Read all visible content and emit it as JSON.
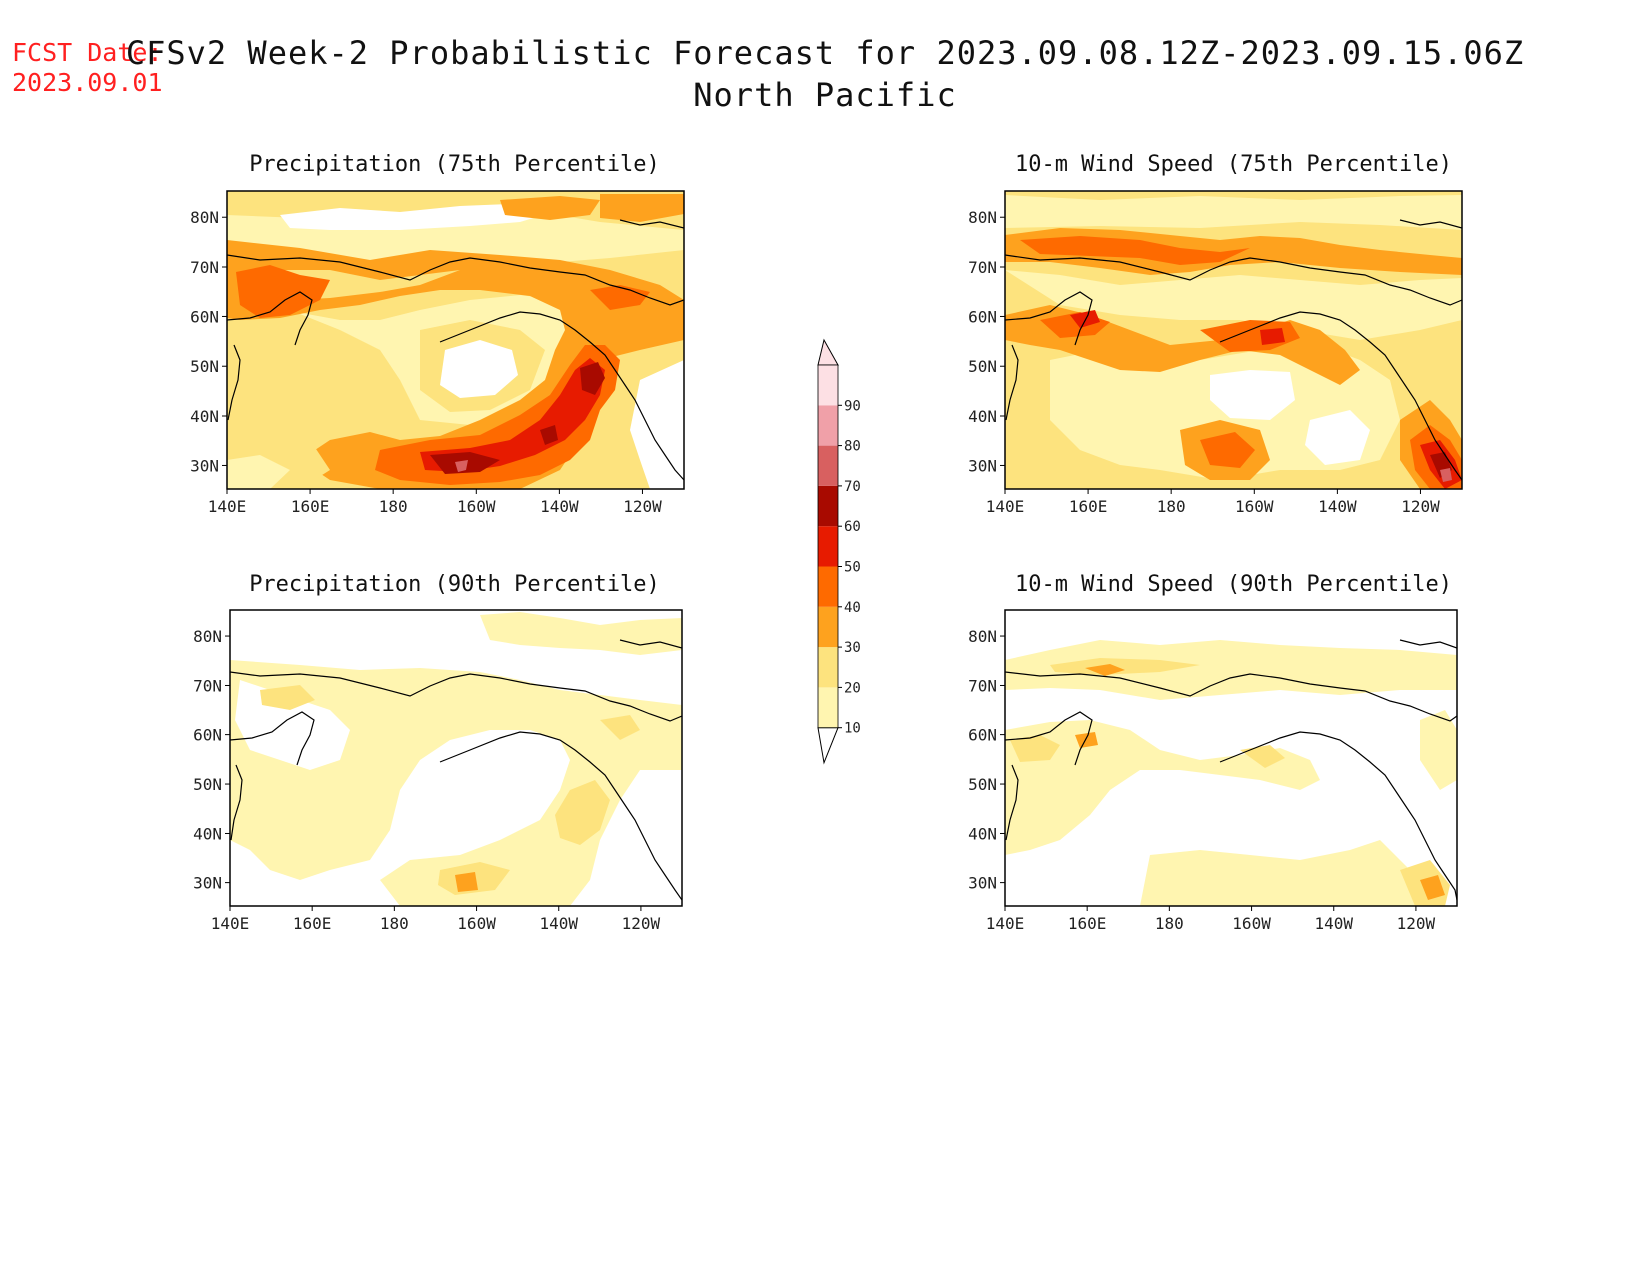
{
  "header": {
    "fcst_label": "FCST Date:",
    "fcst_date": "2023.09.01",
    "title_line1": "CFSv2 Week-2 Probabilistic Forecast for 2023.09.08.12Z-2023.09.15.06Z",
    "title_line2": "North Pacific"
  },
  "axes": {
    "lon_ticks": [
      "140E",
      "160E",
      "180",
      "160W",
      "140W",
      "120W"
    ],
    "lat_ticks": [
      "80N",
      "70N",
      "60N",
      "50N",
      "40N",
      "30N"
    ]
  },
  "panels": [
    {
      "id": "precip75",
      "title": "Precipitation (75th Percentile)"
    },
    {
      "id": "wind75",
      "title": "10-m Wind Speed (75th Percentile)"
    },
    {
      "id": "precip90",
      "title": "Precipitation (90th Percentile)"
    },
    {
      "id": "wind90",
      "title": "10-m Wind Speed (90th Percentile)"
    }
  ],
  "colorbar": {
    "levels": [
      "10",
      "20",
      "30",
      "40",
      "50",
      "60",
      "70",
      "80",
      "90"
    ],
    "colors": [
      "#fff5b0",
      "#fde37e",
      "#fea21e",
      "#fe6a00",
      "#e71b00",
      "#a80a00",
      "#d86060",
      "#f0a0a8",
      "#fde0e4"
    ]
  },
  "colors": {
    "c1": "#fff5b0",
    "c2": "#fde37e",
    "c3": "#fea21e",
    "c4": "#fe6a00",
    "c5": "#e71b00",
    "c6": "#a80a00",
    "c7": "#d86060",
    "title": "#111111",
    "fcst": "#ff2020"
  }
}
